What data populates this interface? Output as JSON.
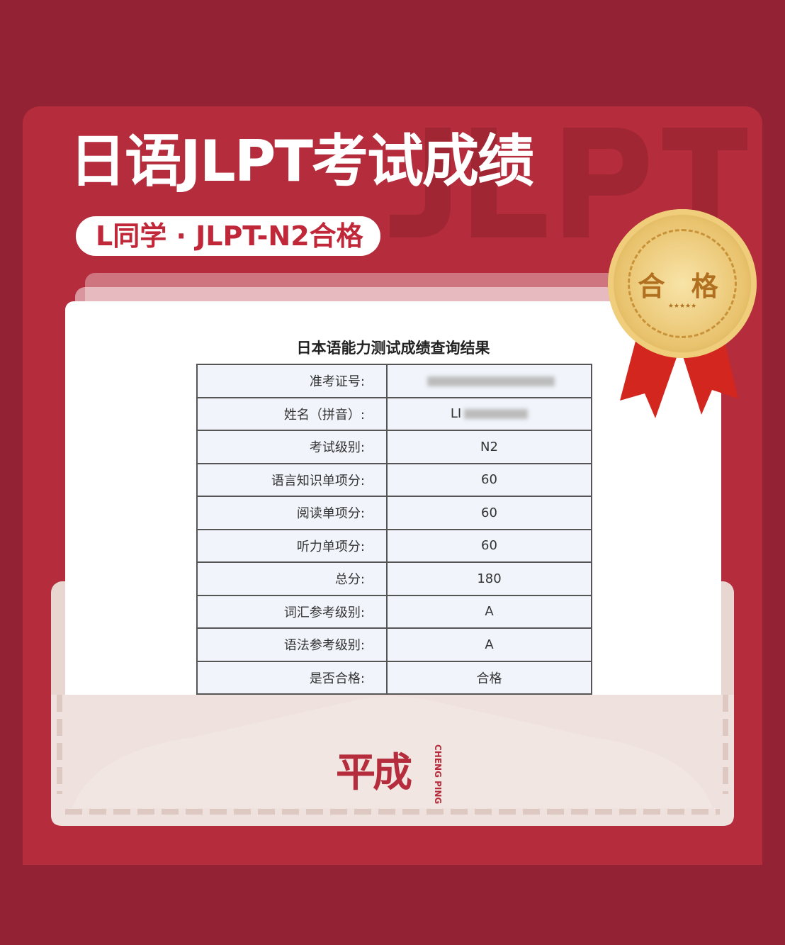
{
  "header": {
    "title": "日语JLPT考试成绩",
    "watermark": "JLPT",
    "badge": "L同学 · JLPT-N2合格"
  },
  "medal": {
    "label": "合 格",
    "stars": "★★★★★"
  },
  "result": {
    "title": "日本语能力测试成绩查询结果",
    "rows": [
      {
        "label": "准考证号:",
        "value": ""
      },
      {
        "label": "姓名（拼音）:",
        "value": "LI"
      },
      {
        "label": "考试级别:",
        "value": "N2"
      },
      {
        "label": "语言知识单项分:",
        "value": "60"
      },
      {
        "label": "阅读单项分:",
        "value": "60"
      },
      {
        "label": "听力单项分:",
        "value": "60"
      },
      {
        "label": "总分:",
        "value": "180"
      },
      {
        "label": "词汇参考级别:",
        "value": "A"
      },
      {
        "label": "语法参考级别:",
        "value": "A"
      },
      {
        "label": "是否合格:",
        "value": "合格"
      }
    ]
  },
  "brand": {
    "name": "平成",
    "english": "CHENG PING"
  },
  "colors": {
    "background": "#922234",
    "card": "#b52c3c",
    "envelope": "#efe2de"
  }
}
